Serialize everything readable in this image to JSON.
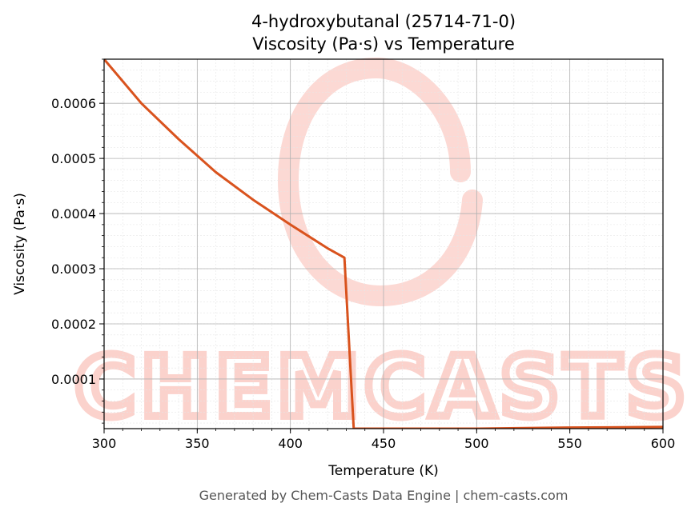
{
  "chart_data": {
    "type": "line",
    "title": "4-hydroxybutanal (25714-71-0)",
    "subtitle": "Viscosity (Pa·s) vs Temperature",
    "xlabel": "Temperature (K)",
    "ylabel": "Viscosity (Pa·s)",
    "xlim": [
      300,
      600
    ],
    "ylim": [
      1e-05,
      0.00068
    ],
    "x_ticks": [
      300,
      350,
      400,
      450,
      500,
      550,
      600
    ],
    "y_ticks": [
      0.0001,
      0.0002,
      0.0003,
      0.0004,
      0.0005,
      0.0006
    ],
    "x_tick_labels": [
      "300",
      "350",
      "400",
      "450",
      "500",
      "550",
      "600"
    ],
    "y_tick_labels": [
      "0.0001",
      "0.0002",
      "0.0003",
      "0.0004",
      "0.0005",
      "0.0006"
    ],
    "grid": true,
    "minor_grid": true,
    "line_color": "#d9531e",
    "series": [
      {
        "x": [
          300,
          320,
          340,
          360,
          380,
          400,
          420,
          429,
          434,
          450,
          500,
          550,
          600
        ],
        "y": [
          0.00068,
          0.0006,
          0.000535,
          0.000475,
          0.000425,
          0.00038,
          0.000337,
          0.00032,
          1e-05,
          1e-05,
          1e-05,
          1.2e-05,
          1.3e-05
        ]
      }
    ]
  },
  "watermark": {
    "text": "CHEMCASTS",
    "color": "#fbd2cc"
  },
  "footer": "Generated by Chem-Casts Data Engine | chem-casts.com"
}
